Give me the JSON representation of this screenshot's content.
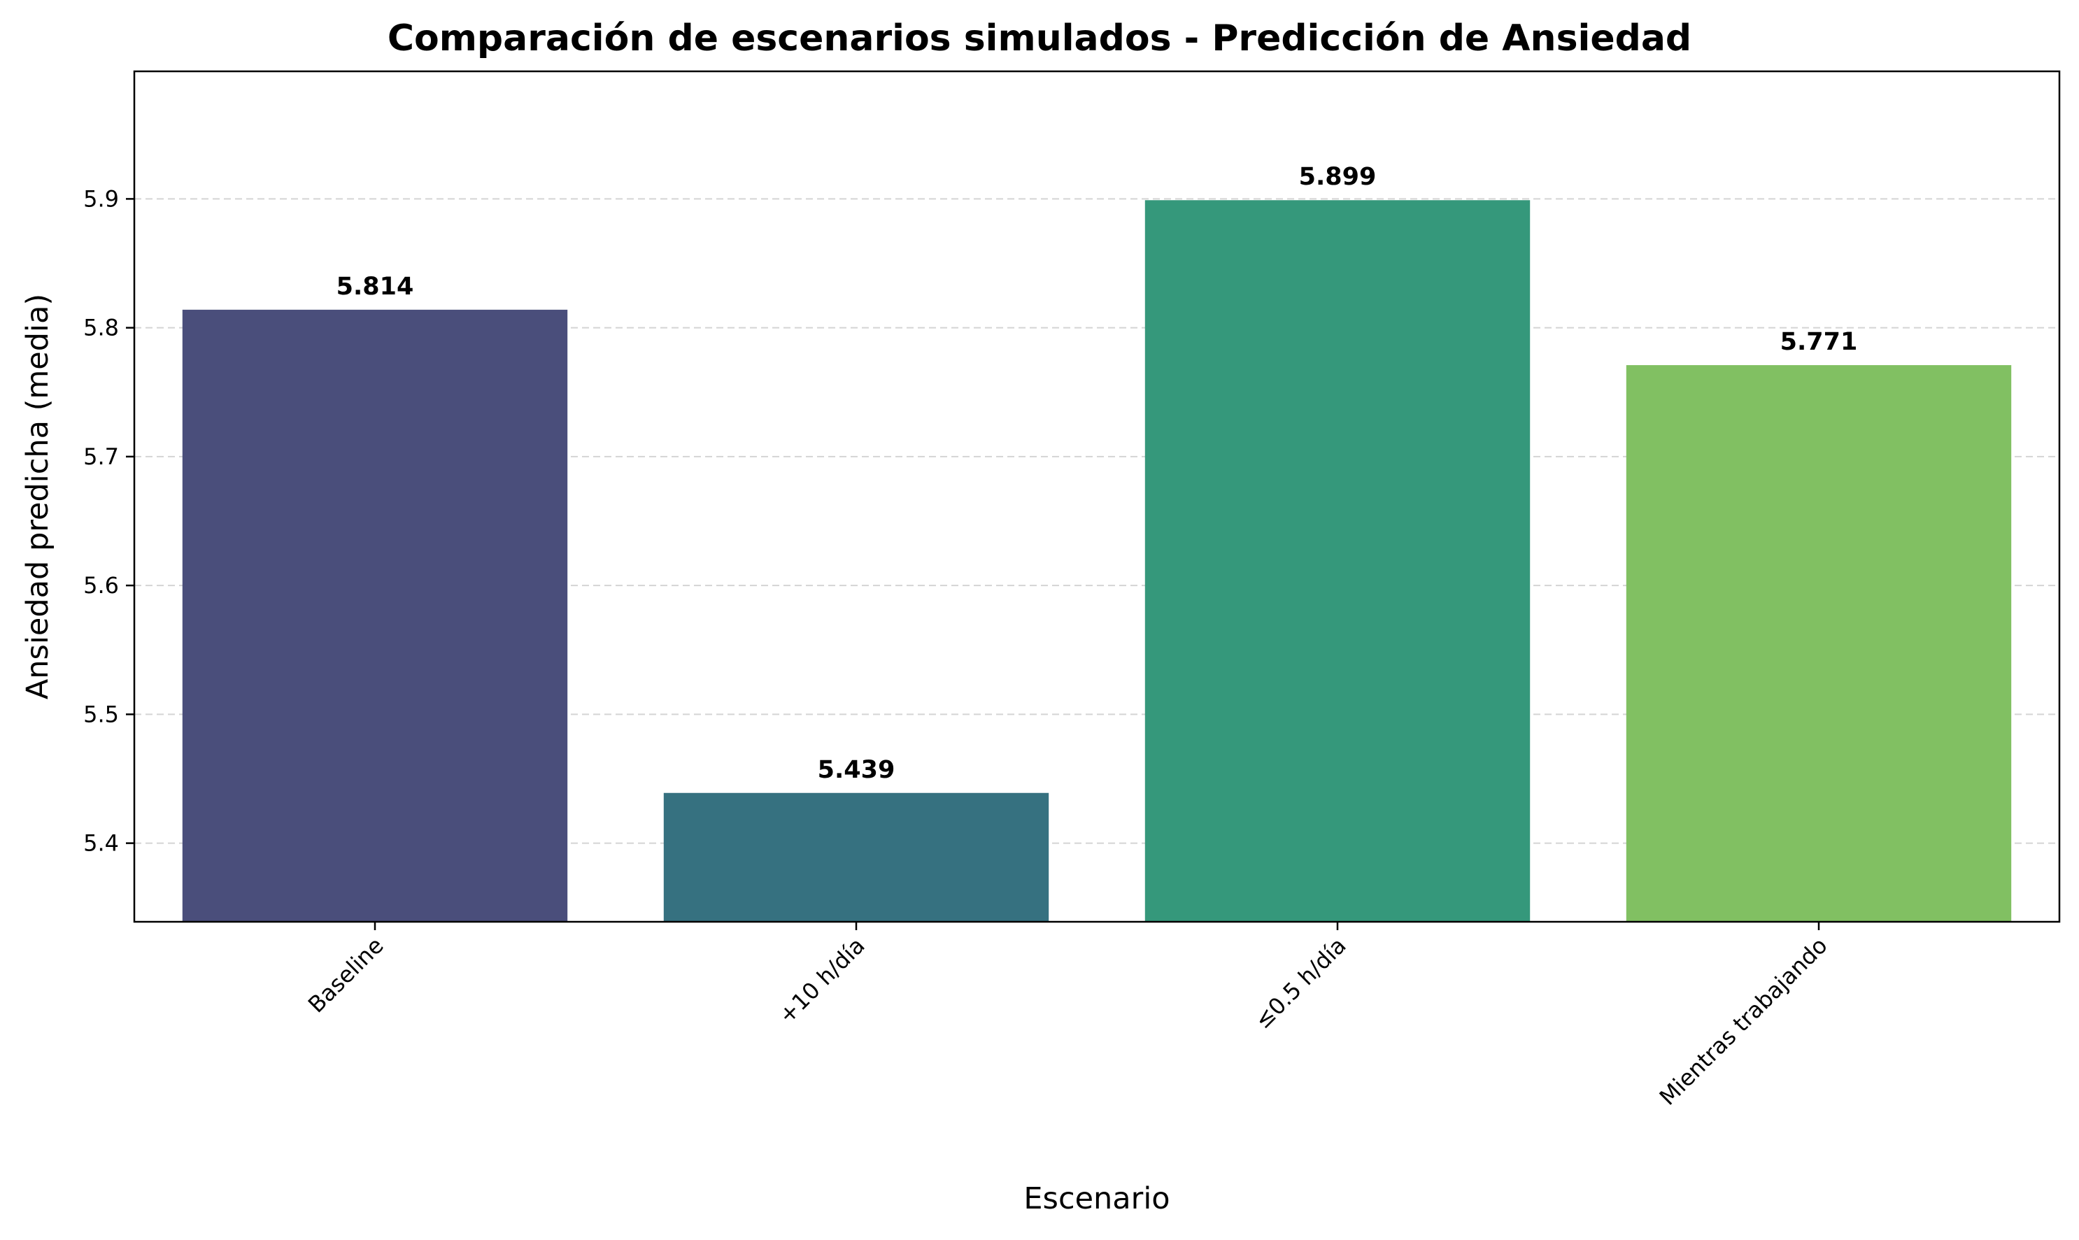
{
  "chart_data": {
    "type": "bar",
    "title": "Comparación de escenarios simulados - Predicción de Ansiedad",
    "xlabel": "Escenario",
    "ylabel": "Ansiedad predicha (media)",
    "categories": [
      "Baseline",
      "+10 h/día",
      "≤0.5 h/día",
      "Mientras trabajando"
    ],
    "values": [
      5.814,
      5.439,
      5.899,
      5.771
    ],
    "value_labels": [
      "5.814",
      "5.439",
      "5.899",
      "5.771"
    ],
    "colors": [
      "#4a4e7b",
      "#367180",
      "#35987b",
      "#81c062"
    ],
    "ylim": [
      5.339,
      5.999
    ],
    "yticks": [
      5.4,
      5.5,
      5.6,
      5.7,
      5.8,
      5.9
    ],
    "ytick_labels": [
      "5.4",
      "5.5",
      "5.6",
      "5.7",
      "5.8",
      "5.9"
    ],
    "grid": "y-dashed",
    "legend": "none"
  }
}
